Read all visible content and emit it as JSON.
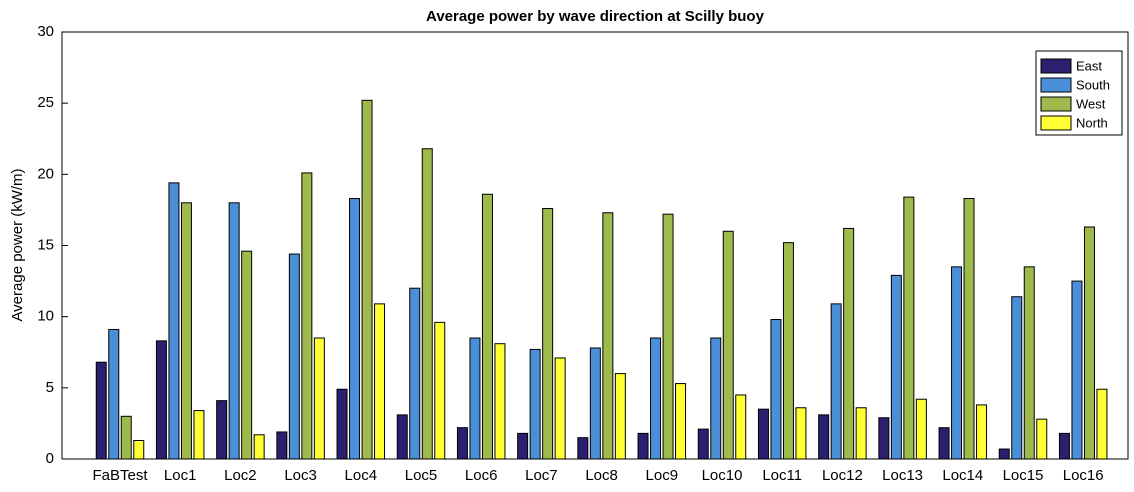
{
  "chart_data": {
    "type": "bar",
    "title": "Average power by wave direction at Scilly buoy",
    "y_label": "Average power (kW/m)",
    "categories": [
      "FaBTest",
      "Loc1",
      "Loc2",
      "Loc3",
      "Loc4",
      "Loc5",
      "Loc6",
      "Loc7",
      "Loc8",
      "Loc9",
      "Loc10",
      "Loc11",
      "Loc12",
      "Loc13",
      "Loc14",
      "Loc15",
      "Loc16"
    ],
    "series": [
      {
        "name": "East",
        "color": "#2b2070",
        "values": [
          6.8,
          8.3,
          4.1,
          1.9,
          4.9,
          3.1,
          2.2,
          1.8,
          1.5,
          1.8,
          2.1,
          3.5,
          3.1,
          2.9,
          2.2,
          0.7,
          1.8
        ]
      },
      {
        "name": "South",
        "color": "#4b8fd8",
        "values": [
          9.1,
          19.4,
          18.0,
          14.4,
          18.3,
          12.0,
          8.5,
          7.7,
          7.8,
          8.5,
          8.5,
          9.8,
          10.9,
          12.9,
          13.5,
          11.4,
          12.5
        ]
      },
      {
        "name": "West",
        "color": "#9fba4c",
        "values": [
          3.0,
          18.0,
          14.6,
          20.1,
          25.2,
          21.8,
          18.6,
          17.6,
          17.3,
          17.2,
          16.0,
          15.2,
          16.2,
          18.4,
          18.3,
          13.5,
          16.3
        ]
      },
      {
        "name": "North",
        "color": "#ffff33",
        "values": [
          1.3,
          3.4,
          1.7,
          8.5,
          10.9,
          9.6,
          8.1,
          7.1,
          6.0,
          5.3,
          4.5,
          3.6,
          3.6,
          4.2,
          3.8,
          2.8,
          4.9
        ]
      }
    ],
    "ylim": [
      0,
      30
    ],
    "yticks": [
      0,
      5,
      10,
      15,
      20,
      25,
      30
    ],
    "grid": false,
    "legend": "upper right"
  }
}
